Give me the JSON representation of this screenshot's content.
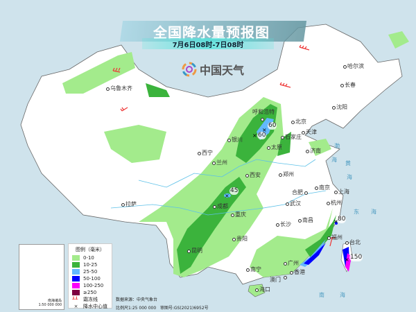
{
  "header": {
    "title": "全国降水量预报图",
    "subtitle": "7月6日08时-7日08时",
    "logo_text": "中国天气"
  },
  "legend": {
    "title": "图例（毫米）",
    "items": [
      {
        "label": "0-10",
        "color": "#a3eb8c"
      },
      {
        "label": "10-25",
        "color": "#3bb33c"
      },
      {
        "label": "25-50",
        "color": "#62b8ff"
      },
      {
        "label": "50-100",
        "color": "#0000fe"
      },
      {
        "label": "100-250",
        "color": "#fb00fa"
      },
      {
        "label": "≥250",
        "color": "#7e0040"
      }
    ],
    "frost_line": "霜冻线",
    "center_value": "降水中心值"
  },
  "inset": {
    "label": "南海诸岛",
    "scale": "1:50 000 000"
  },
  "source": {
    "data_source": "数据来源：中央气象台",
    "scale": "比例尺1:25 000 000",
    "review": "审图号:GS(2021)6952号"
  },
  "cities": [
    "哈尔滨",
    "长春",
    "沈阳",
    "北京",
    "天津",
    "石家庄",
    "太原",
    "呼和浩特",
    "银川",
    "西宁",
    "兰州",
    "西安",
    "郑州",
    "济南",
    "合肥",
    "南京",
    "上海",
    "杭州",
    "武汉",
    "长沙",
    "南昌",
    "福州",
    "广州",
    "香港",
    "澳门",
    "南宁",
    "贵阳",
    "重庆",
    "成都",
    "昆明",
    "拉萨",
    "乌鲁木齐",
    "海口",
    "台北"
  ],
  "precip_centers": [
    "60",
    "60",
    "45",
    "80",
    "150"
  ],
  "seas": [
    "东",
    "海",
    "南",
    "海",
    "渤",
    "海",
    "黄",
    "海"
  ]
}
